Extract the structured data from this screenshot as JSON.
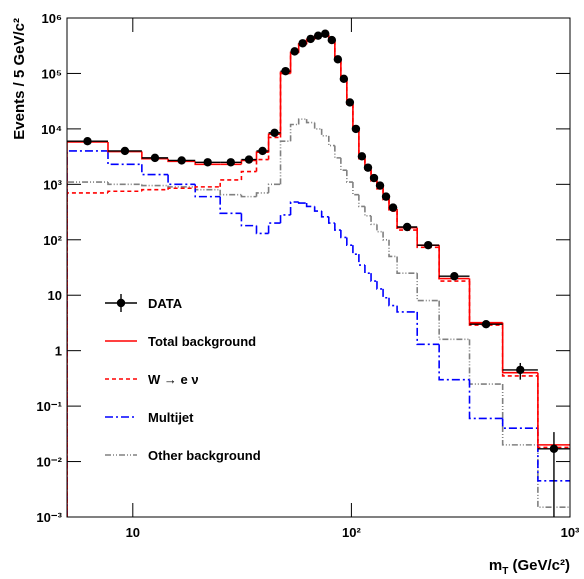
{
  "chart_data": {
    "type": "histogram",
    "xscale": "log",
    "yscale": "log",
    "xlim": [
      5,
      1000
    ],
    "ylim": [
      0.001,
      1000000
    ],
    "xticks": [
      10,
      {
        "value": 100,
        "label": "10²"
      },
      {
        "value": 1000,
        "label": "10³"
      }
    ],
    "yticks": [
      {
        "value": 0.001,
        "label": "10⁻³"
      },
      {
        "value": 0.01,
        "label": "10⁻²"
      },
      {
        "value": 0.1,
        "label": "10⁻¹"
      },
      1,
      10,
      {
        "value": 100,
        "label": "10²"
      },
      {
        "value": 1000,
        "label": "10³"
      },
      {
        "value": 10000,
        "label": "10⁴"
      },
      {
        "value": 100000,
        "label": "10⁵"
      },
      {
        "value": 1000000,
        "label": "10⁶"
      }
    ],
    "y_label": "Events / 5 GeV/c²",
    "x_label": {
      "symbol": "m",
      "subscript": "T",
      "unit": " (GeV/c²)"
    },
    "bins": [
      5,
      7.7,
      11,
      14.5,
      19.3,
      25.1,
      31.4,
      36.8,
      41.8,
      47.4,
      52.7,
      57.4,
      62.4,
      67.9,
      73.1,
      78.8,
      84,
      89.5,
      95.3,
      101.6,
      108.2,
      115.3,
      123,
      130.9,
      139.6,
      148.6,
      161.8,
      200,
      252,
      347,
      492,
      713,
      1000
    ],
    "series": [
      {
        "name": "Other background",
        "color": "#808080",
        "linestyle": "dashdotdot",
        "values": [
          1100,
          1000,
          950,
          900,
          800,
          650,
          600,
          700,
          1000,
          6000,
          12000,
          15000,
          13000,
          10000,
          7500,
          5000,
          3000,
          1800,
          1100,
          650,
          400,
          270,
          190,
          140,
          100,
          50,
          25,
          8,
          1.6,
          0.25,
          0.02,
          0.0015
        ]
      },
      {
        "name": "Multijet",
        "color": "#0000ff",
        "linestyle": "dashdot",
        "values": [
          4000,
          2300,
          1500,
          1000,
          600,
          300,
          180,
          130,
          200,
          280,
          480,
          460,
          400,
          330,
          260,
          200,
          150,
          110,
          80,
          55,
          35,
          25,
          18,
          13,
          9,
          6.5,
          5,
          1.3,
          0.3,
          0.06,
          0.04,
          0.0045
        ]
      },
      {
        "name": "W → e ν",
        "color": "#ff0000",
        "linestyle": "dashed",
        "values": [
          700,
          750,
          800,
          850,
          900,
          1200,
          1700,
          2800,
          7000,
          100000,
          235000,
          335000,
          405000,
          465000,
          495000,
          385000,
          172000,
          76000,
          28000,
          10000,
          2900,
          1800,
          1150,
          830,
          530,
          330,
          150,
          73,
          18,
          2.9,
          0.35,
          0.018
        ]
      },
      {
        "name": "Total background",
        "color": "#ff0000",
        "linestyle": "solid",
        "values": [
          5800,
          3900,
          2900,
          2600,
          2300,
          2300,
          2700,
          3800,
          8000,
          105000,
          240000,
          340000,
          410000,
          470000,
          500000,
          390000,
          175000,
          78000,
          29000,
          10500,
          3100,
          1900,
          1250,
          900,
          580,
          360,
          165,
          80,
          20,
          3.2,
          0.4,
          0.02
        ]
      },
      {
        "name": "DATA",
        "color": "#000000",
        "style": "points",
        "values": [
          6000,
          4000,
          3000,
          2700,
          2500,
          2500,
          2800,
          4000,
          8500,
          110000,
          250000,
          350000,
          420000,
          480000,
          520000,
          400000,
          180000,
          80000,
          30000,
          10000,
          3200,
          2000,
          1300,
          950,
          600,
          380,
          170,
          80,
          22,
          3,
          0.45,
          0.017
        ],
        "errors": [
          null,
          null,
          null,
          null,
          null,
          null,
          null,
          null,
          null,
          null,
          null,
          null,
          null,
          null,
          null,
          null,
          null,
          null,
          null,
          null,
          null,
          null,
          null,
          null,
          null,
          null,
          null,
          8,
          3,
          0.4,
          0.15,
          0.017
        ]
      }
    ]
  }
}
